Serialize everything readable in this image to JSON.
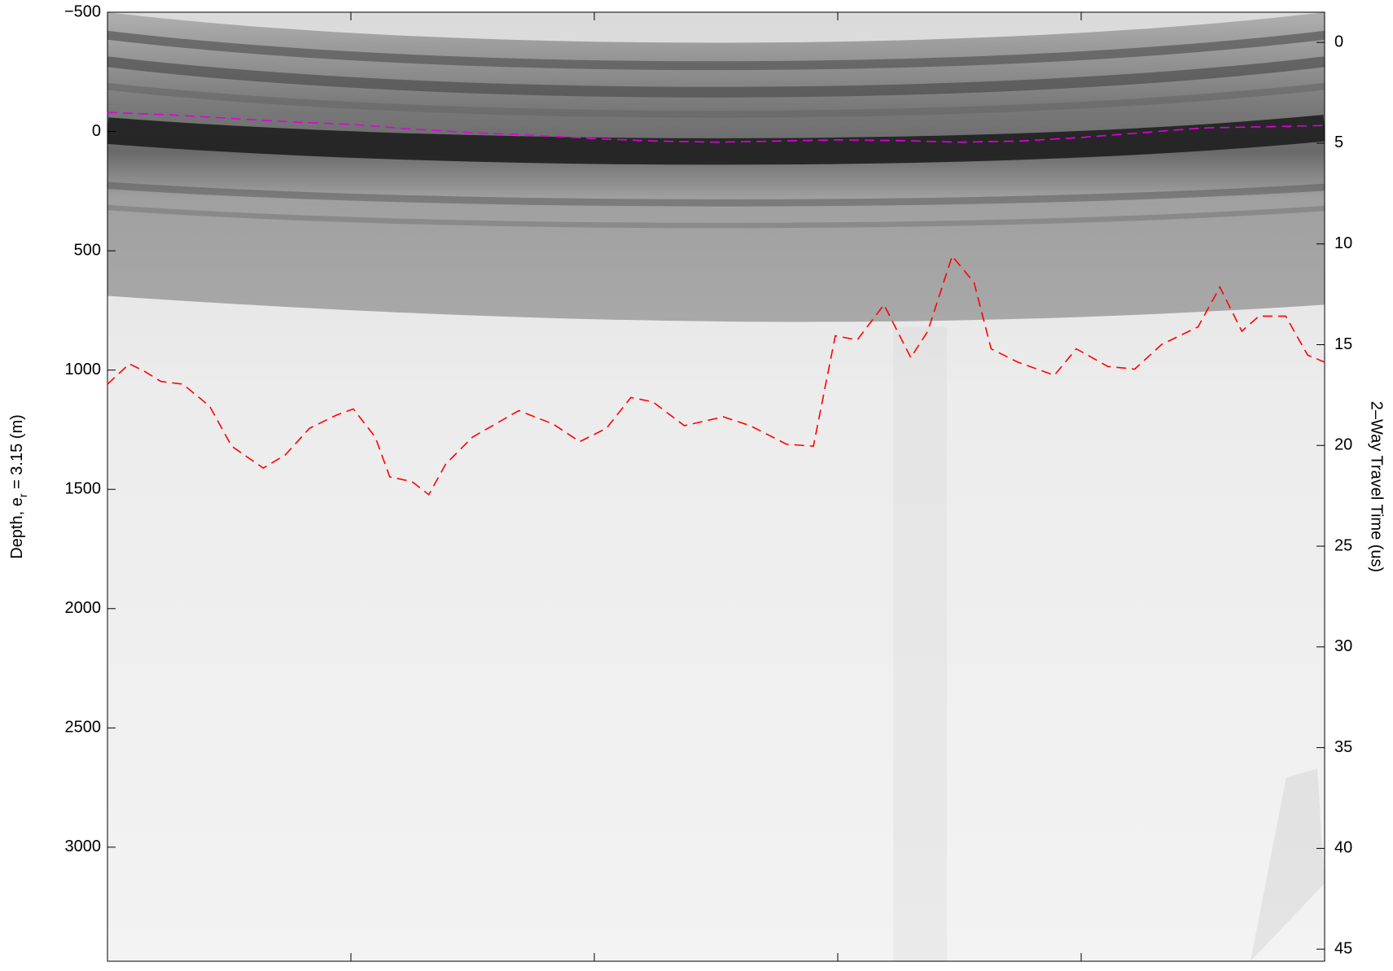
{
  "chart_data": {
    "type": "line",
    "ylabel": [
      "Depth, e",
      "r",
      " = 3.15 (m)"
    ],
    "y2label": "2–Way Travel Time (us)",
    "xlim": [
      0,
      5
    ],
    "xticks": [
      1,
      2,
      3,
      4
    ],
    "ylim": [
      -500,
      3478
    ],
    "yticks": [
      {
        "value": -500,
        "label": "−500"
      },
      0,
      500,
      1000,
      1500,
      2000,
      2500,
      3000
    ],
    "y2lim": [
      -1.5,
      45.6
    ],
    "y2ticks": [
      0,
      5,
      10,
      15,
      20,
      25,
      30,
      35,
      40,
      45
    ],
    "series": [
      {
        "color": "#e000e0",
        "x": [
          0,
          0.25,
          0.5,
          0.75,
          1,
          1.25,
          1.5,
          1.75,
          2,
          2.25,
          2.5,
          2.75,
          3,
          3.25,
          3.5,
          3.75,
          4,
          4.25,
          4.5,
          4.75,
          5
        ],
        "values": [
          -80,
          -70,
          -55,
          -40,
          -30,
          -10,
          5,
          15,
          30,
          40,
          45,
          40,
          35,
          38,
          45,
          40,
          25,
          5,
          -15,
          -20,
          -25
        ]
      },
      {
        "color": "#ff0000",
        "x": [
          0,
          0.09,
          0.15,
          0.22,
          0.31,
          0.42,
          0.51,
          0.64,
          0.73,
          0.83,
          0.94,
          1.01,
          1.1,
          1.16,
          1.25,
          1.32,
          1.39,
          1.5,
          1.69,
          1.83,
          1.94,
          2.05,
          2.15,
          2.24,
          2.37,
          2.53,
          2.64,
          2.79,
          2.9,
          2.99,
          3.08,
          3.19,
          3.3,
          3.37,
          3.47,
          3.56,
          3.63,
          3.74,
          3.89,
          3.98,
          4.11,
          4.22,
          4.33,
          4.48,
          4.57,
          4.66,
          4.73,
          4.84,
          4.93,
          5
        ],
        "values": [
          1059,
          974,
          1004,
          1048,
          1059,
          1152,
          1319,
          1411,
          1356,
          1244,
          1189,
          1163,
          1281,
          1448,
          1467,
          1522,
          1393,
          1281,
          1170,
          1226,
          1300,
          1244,
          1115,
          1133,
          1233,
          1196,
          1233,
          1311,
          1319,
          856,
          874,
          726,
          948,
          837,
          522,
          633,
          911,
          967,
          1022,
          911,
          985,
          996,
          893,
          819,
          652,
          837,
          774,
          774,
          937,
          967
        ]
      }
    ]
  }
}
